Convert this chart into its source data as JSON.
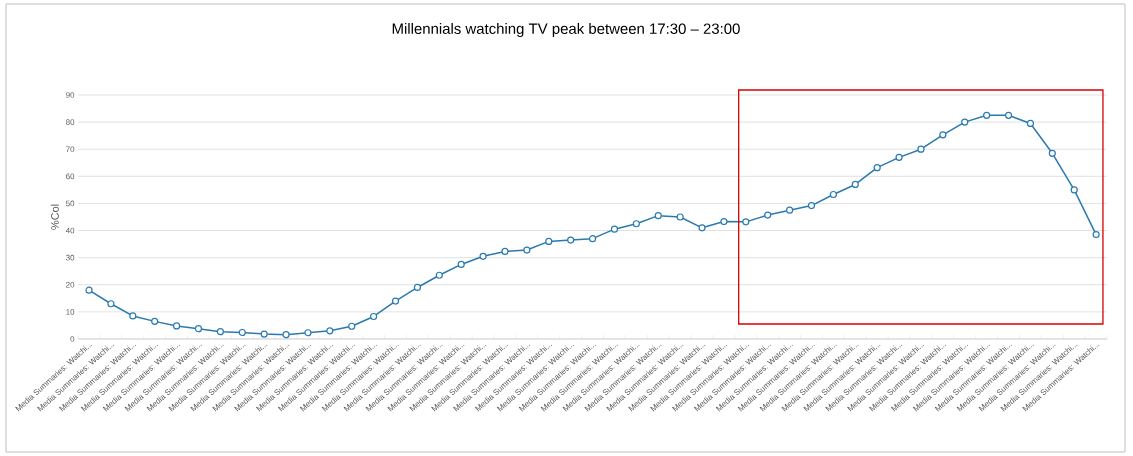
{
  "chart_data": {
    "type": "line",
    "title": "Millennials watching TV peak between 17:30 – 23:00",
    "ylabel": "%Col",
    "categories": [
      "Media Summaries: Watchi...",
      "Media Summaries: Watchi...",
      "Media Summaries: Watchi...",
      "Media Summaries: Watchi...",
      "Media Summaries: Watchi...",
      "Media Summaries: Watchi...",
      "Media Summaries: Watchi...",
      "Media Summaries: Watchi...",
      "Media Summaries: Watchi...",
      "Media Summaries: Watchi...",
      "Media Summaries: Watchi...",
      "Media Summaries: Watchi...",
      "Media Summaries: Watchi...",
      "Media Summaries: Watchi...",
      "Media Summaries: Watchi...",
      "Media Summaries: Watchi...",
      "Media Summaries: Watchi...",
      "Media Summaries: Watchi...",
      "Media Summaries: Watchi...",
      "Media Summaries: Watchi...",
      "Media Summaries: Watchi...",
      "Media Summaries: Watchi...",
      "Media Summaries: Watchi...",
      "Media Summaries: Watchi...",
      "Media Summaries: Watchi...",
      "Media Summaries: Watchi...",
      "Media Summaries: Watchi...",
      "Media Summaries: Watchi...",
      "Media Summaries: Watchi...",
      "Media Summaries: Watchi...",
      "Media Summaries: Watchi...",
      "Media Summaries: Watchi...",
      "Media Summaries: Watchi...",
      "Media Summaries: Watchi...",
      "Media Summaries: Watchi...",
      "Media Summaries: Watchi...",
      "Media Summaries: Watchi...",
      "Media Summaries: Watchi...",
      "Media Summaries: Watchi...",
      "Media Summaries: Watchi...",
      "Media Summaries: Watchi...",
      "Media Summaries: Watchi...",
      "Media Summaries: Watchi...",
      "Media Summaries: Watchi...",
      "Media Summaries: Watchi...",
      "Media Summaries: Watchi...",
      "Media Summaries: Watchi..."
    ],
    "values": [
      18,
      13,
      8.5,
      6.5,
      4.8,
      3.8,
      2.7,
      2.4,
      1.8,
      1.6,
      2.3,
      3,
      4.7,
      8.3,
      14,
      19,
      23.5,
      27.5,
      30.5,
      32.3,
      32.8,
      36,
      36.5,
      37,
      40.5,
      42.5,
      45.5,
      45,
      41,
      43.3,
      43.2,
      45.7,
      47.5,
      49.2,
      53.3,
      57,
      63.2,
      67,
      70,
      75.3,
      80,
      82.5,
      82.5,
      79.5,
      68.5,
      55,
      38.5
    ],
    "color": "#2a7ab0",
    "ylim": [
      0,
      90
    ],
    "yticks": [
      0,
      10,
      20,
      30,
      40,
      50,
      60,
      70,
      80,
      90
    ],
    "grid": "y",
    "marker": "circle",
    "line_style": "solid"
  }
}
